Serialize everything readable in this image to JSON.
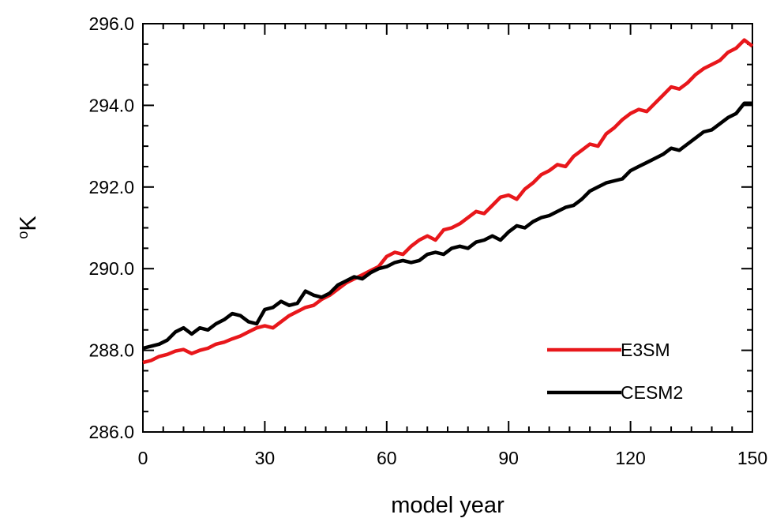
{
  "chart_data": {
    "type": "line",
    "xlabel": "model year",
    "ylabel": "°K",
    "ylabel_base": "K",
    "ylabel_degree": "o",
    "xlim": [
      0,
      150
    ],
    "ylim": [
      286.0,
      296.0
    ],
    "x_ticks": [
      0,
      30,
      60,
      90,
      120,
      150
    ],
    "y_ticks": [
      286.0,
      288.0,
      290.0,
      292.0,
      294.0,
      296.0
    ],
    "x_tick_labels": [
      "0",
      "30",
      "60",
      "90",
      "120",
      "150"
    ],
    "y_tick_labels": [
      "286.0",
      "288.0",
      "290.0",
      "292.0",
      "294.0",
      "296.0"
    ],
    "grid": false,
    "legend_position": "bottom-right",
    "series": [
      {
        "name": "E3SM",
        "color": "#e8171b",
        "x": [
          0,
          2,
          4,
          6,
          8,
          10,
          12,
          14,
          16,
          18,
          20,
          22,
          24,
          26,
          28,
          30,
          32,
          34,
          36,
          38,
          40,
          42,
          44,
          46,
          48,
          50,
          52,
          54,
          56,
          58,
          60,
          62,
          64,
          66,
          68,
          70,
          72,
          74,
          76,
          78,
          80,
          82,
          84,
          86,
          88,
          90,
          92,
          94,
          96,
          98,
          100,
          102,
          104,
          106,
          108,
          110,
          112,
          114,
          116,
          118,
          120,
          122,
          124,
          126,
          128,
          130,
          132,
          134,
          136,
          138,
          140,
          142,
          144,
          146,
          148,
          150
        ],
        "values": [
          287.7,
          287.75,
          287.85,
          287.9,
          287.98,
          288.02,
          287.92,
          288.0,
          288.05,
          288.15,
          288.2,
          288.28,
          288.35,
          288.45,
          288.55,
          288.6,
          288.55,
          288.7,
          288.85,
          288.95,
          289.05,
          289.1,
          289.25,
          289.35,
          289.5,
          289.65,
          289.75,
          289.85,
          289.95,
          290.05,
          290.3,
          290.4,
          290.35,
          290.55,
          290.7,
          290.8,
          290.7,
          290.95,
          291.0,
          291.1,
          291.25,
          291.4,
          291.35,
          291.55,
          291.75,
          291.8,
          291.7,
          291.95,
          292.1,
          292.3,
          292.4,
          292.55,
          292.5,
          292.75,
          292.9,
          293.05,
          293.0,
          293.3,
          293.45,
          293.65,
          293.8,
          293.9,
          293.85,
          294.05,
          294.25,
          294.45,
          294.4,
          294.55,
          294.75,
          294.9,
          295.0,
          295.1,
          295.3,
          295.4,
          295.6,
          295.45
        ]
      },
      {
        "name": "CESM2",
        "color": "#000000",
        "x": [
          0,
          2,
          4,
          6,
          8,
          10,
          12,
          14,
          16,
          18,
          20,
          22,
          24,
          26,
          28,
          30,
          32,
          34,
          36,
          38,
          40,
          42,
          44,
          46,
          48,
          50,
          52,
          54,
          56,
          58,
          60,
          62,
          64,
          66,
          68,
          70,
          72,
          74,
          76,
          78,
          80,
          82,
          84,
          86,
          88,
          90,
          92,
          94,
          96,
          98,
          100,
          102,
          104,
          106,
          108,
          110,
          112,
          114,
          116,
          118,
          120,
          122,
          124,
          126,
          128,
          130,
          132,
          134,
          136,
          138,
          140,
          142,
          144,
          146,
          148,
          150
        ],
        "values": [
          288.05,
          288.1,
          288.15,
          288.25,
          288.45,
          288.55,
          288.4,
          288.55,
          288.5,
          288.65,
          288.75,
          288.9,
          288.85,
          288.7,
          288.65,
          289.0,
          289.05,
          289.2,
          289.1,
          289.15,
          289.45,
          289.35,
          289.3,
          289.4,
          289.6,
          289.7,
          289.8,
          289.75,
          289.9,
          290.0,
          290.05,
          290.15,
          290.2,
          290.15,
          290.2,
          290.35,
          290.4,
          290.35,
          290.5,
          290.55,
          290.5,
          290.65,
          290.7,
          290.8,
          290.7,
          290.9,
          291.05,
          291.0,
          291.15,
          291.25,
          291.3,
          291.4,
          291.5,
          291.55,
          291.7,
          291.9,
          292.0,
          292.1,
          292.15,
          292.2,
          292.4,
          292.5,
          292.6,
          292.7,
          292.8,
          292.95,
          292.9,
          293.05,
          293.2,
          293.35,
          293.4,
          293.55,
          293.7,
          293.8,
          294.05,
          294.05
        ]
      }
    ]
  }
}
